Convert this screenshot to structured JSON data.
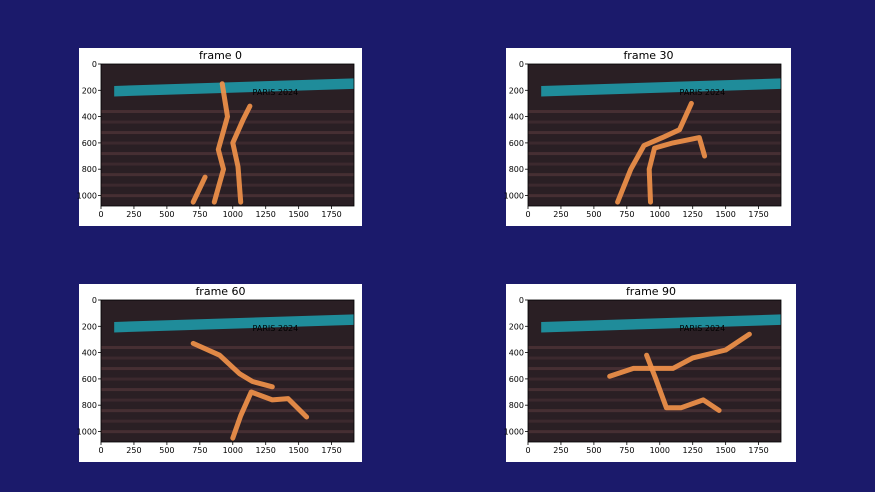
{
  "colors": {
    "background": "#1b1a6b",
    "figure": "#ffffff",
    "segmentation": "#f0914a"
  },
  "banner_text": "PARIS 2024",
  "xticks": [
    "0",
    "250",
    "500",
    "750",
    "1000",
    "1250",
    "1500",
    "1750"
  ],
  "yticks": [
    "0",
    "200",
    "400",
    "600",
    "800",
    "1000"
  ],
  "frames": [
    {
      "title": "frame 0"
    },
    {
      "title": "frame 30"
    },
    {
      "title": "frame 60"
    },
    {
      "title": "frame 90"
    }
  ]
}
